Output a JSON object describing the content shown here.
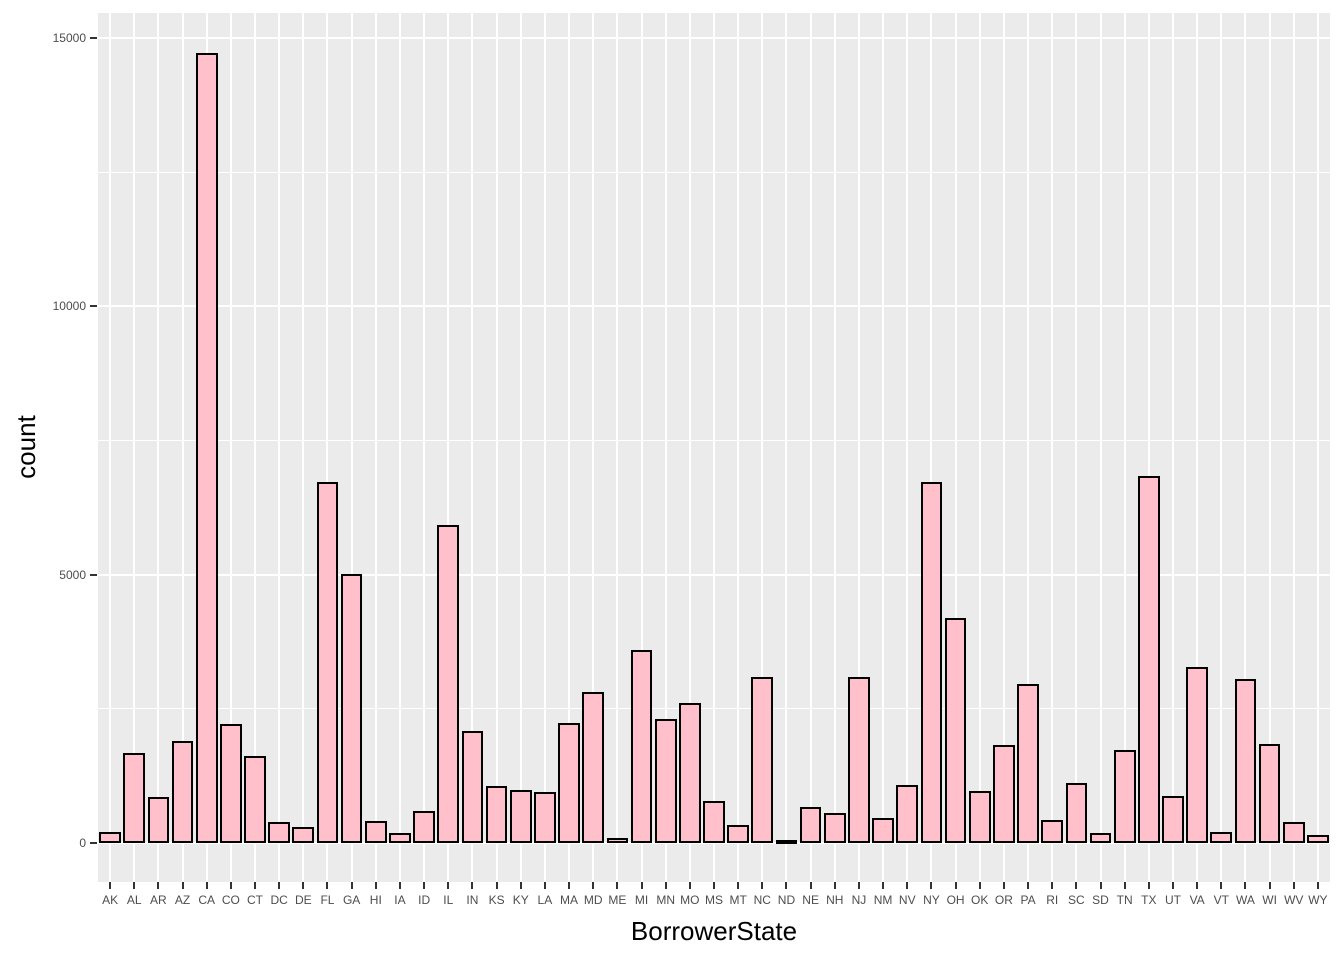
{
  "chart_data": {
    "type": "bar",
    "title": "",
    "xlabel": "BorrowerState",
    "ylabel": "count",
    "categories": [
      "AK",
      "AL",
      "AR",
      "AZ",
      "CA",
      "CO",
      "CT",
      "DC",
      "DE",
      "FL",
      "GA",
      "HI",
      "IA",
      "ID",
      "IL",
      "IN",
      "KS",
      "KY",
      "LA",
      "MA",
      "MD",
      "ME",
      "MI",
      "MN",
      "MO",
      "MS",
      "MT",
      "NC",
      "ND",
      "NE",
      "NH",
      "NJ",
      "NM",
      "NV",
      "NY",
      "OH",
      "OK",
      "OR",
      "PA",
      "RI",
      "SC",
      "SD",
      "TN",
      "TX",
      "UT",
      "VA",
      "VT",
      "WA",
      "WI",
      "WV",
      "WY"
    ],
    "values": [
      200,
      1679,
      855,
      1901,
      14717,
      2210,
      1627,
      382,
      300,
      6720,
      5008,
      409,
      186,
      599,
      5921,
      2078,
      1062,
      983,
      954,
      2242,
      2821,
      101,
      3593,
      2318,
      2615,
      787,
      330,
      3084,
      52,
      674,
      551,
      3097,
      472,
      1086,
      6729,
      4197,
      971,
      1817,
      2972,
      435,
      1122,
      189,
      1737,
      6842,
      877,
      3278,
      207,
      3048,
      1842,
      391,
      150
    ],
    "ylim": [
      0,
      15465
    ],
    "y_axis_ticks": [
      0,
      5000,
      10000,
      15000
    ],
    "y_axis_tick_labels": [
      "0",
      "5000",
      "10000",
      "15000"
    ],
    "y_minor_gridlines": [
      2500,
      7500,
      12500
    ],
    "grid": "on",
    "legend": "none",
    "colors": {
      "bar_fill": "#FFC0CB",
      "bar_stroke": "#000000",
      "panel_background": "#EBEBEB",
      "gridline": "#FFFFFF",
      "tick_mark": "#333333",
      "tick_label": "#4D4D4D",
      "axis_title": "#000000",
      "figure_background": "#FFFFFF"
    }
  }
}
